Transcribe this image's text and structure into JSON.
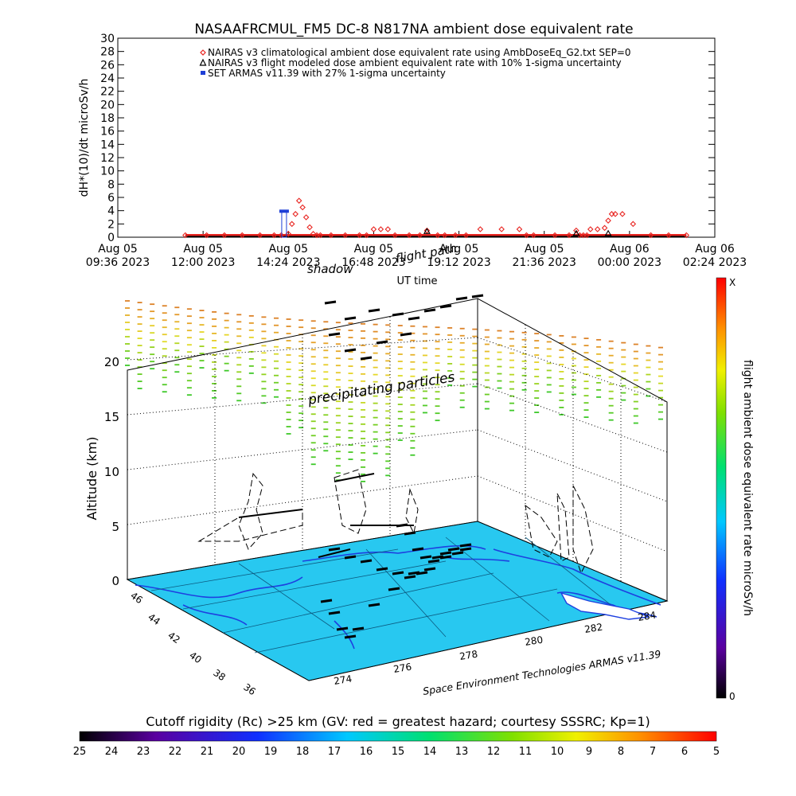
{
  "top_chart": {
    "title": "NASAAFRCMUL_FM5 DC-8   N817NA ambient dose equivalent rate",
    "ylabel": "dH*(10)/dt microSv/h",
    "xlabel": "UT time",
    "legend": [
      {
        "text": "NAIRAS v3 climatological ambient dose equivalent rate using AmbDoseEq_G2.txt SEP=0",
        "marker": "diamond",
        "color": "#e8231f"
      },
      {
        "text": "NAIRAS v3 flight modeled dose ambient equivalent rate with 10% 1-sigma uncertainty",
        "marker": "triangle",
        "color": "#000000"
      },
      {
        "text": "SET ARMAS v11.39 with 27% 1-sigma uncertainty",
        "marker": "square",
        "color": "#1f3fd6"
      }
    ],
    "x_ticks": [
      {
        "line1": "Aug 05",
        "line2": "09:36 2023"
      },
      {
        "line1": "Aug 05",
        "line2": "12:00 2023"
      },
      {
        "line1": "Aug 05",
        "line2": "14:24 2023"
      },
      {
        "line1": "Aug 05",
        "line2": "16:48 2023"
      },
      {
        "line1": "Aug 05",
        "line2": "19:12 2023"
      },
      {
        "line1": "Aug 05",
        "line2": "21:36 2023"
      },
      {
        "line1": "Aug 06",
        "line2": "00:00 2023"
      },
      {
        "line1": "Aug 06",
        "line2": "02:24 2023"
      }
    ],
    "y_ticks": [
      "0",
      "2",
      "4",
      "6",
      "8",
      "10",
      "12",
      "14",
      "16",
      "18",
      "20",
      "22",
      "24",
      "26",
      "28",
      "30"
    ]
  },
  "chart_data": [
    {
      "type": "scatter",
      "title": "NASAAFRCMUL_FM5 DC-8   N817NA ambient dose equivalent rate",
      "xlabel": "UT time",
      "ylabel": "dH*(10)/dt microSv/h",
      "ylim": [
        0,
        30
      ],
      "x_unit": "hours since Aug 05 2023 09:36 UT",
      "xlim": [
        0,
        16.8
      ],
      "grid": false,
      "legend_position": "top",
      "series": [
        {
          "name": "NAIRAS v3 climatological ambient dose equivalent rate using AmbDoseEq_G2.txt SEP=0",
          "marker": "diamond",
          "x": [
            1.9,
            2.5,
            3.0,
            3.5,
            4.0,
            4.4,
            4.6,
            4.8,
            4.9,
            5.0,
            5.1,
            5.2,
            5.3,
            5.4,
            5.5,
            5.6,
            5.7,
            6.0,
            6.4,
            6.8,
            7.0,
            7.2,
            7.4,
            7.6,
            7.8,
            8.2,
            8.5,
            8.7,
            9.0,
            9.2,
            9.5,
            9.8,
            10.2,
            10.8,
            11.3,
            11.5,
            11.7,
            12.3,
            12.7,
            12.9,
            13.0,
            13.1,
            13.2,
            13.3,
            13.5,
            13.7,
            13.8,
            13.9,
            14.0,
            14.2,
            14.5,
            15.0,
            15.5,
            16.0
          ],
          "y": [
            0.3,
            0.3,
            0.3,
            0.3,
            0.3,
            0.3,
            0.3,
            0.5,
            2.0,
            3.5,
            5.5,
            4.5,
            3.0,
            1.5,
            0.5,
            0.3,
            0.3,
            0.3,
            0.3,
            0.3,
            0.3,
            1.2,
            1.2,
            1.2,
            0.3,
            0.3,
            0.3,
            1.0,
            0.3,
            0.3,
            0.3,
            0.3,
            1.2,
            1.2,
            1.2,
            0.3,
            0.3,
            0.3,
            0.3,
            1.0,
            0.3,
            0.3,
            0.3,
            1.2,
            1.2,
            1.4,
            2.5,
            3.5,
            3.5,
            3.5,
            2.0,
            0.3,
            0.3,
            0.3
          ]
        },
        {
          "name": "NAIRAS v3 flight modeled dose ambient equivalent rate with 10% 1-sigma uncertainty",
          "marker": "triangle",
          "x": [
            8.7,
            12.9,
            13.8
          ],
          "y": [
            0.8,
            0.5,
            0.5
          ]
        },
        {
          "name": "SET ARMAS v11.39 with 27% 1-sigma uncertainty",
          "marker": "square",
          "x": [
            4.68
          ],
          "y": [
            3.8
          ]
        }
      ]
    },
    {
      "type": "scatter3d",
      "ylabel": "Altitude (km)",
      "zlim": [
        0,
        23
      ],
      "z_ticks": [
        "0",
        "5",
        "10",
        "15",
        "20"
      ],
      "longitude_ticks": [
        "274",
        "276",
        "278",
        "280",
        "282",
        "284"
      ],
      "latitude_ticks": [
        "46",
        "44",
        "42",
        "40",
        "38",
        "36"
      ],
      "annotations": [
        "precipitating particles",
        "shadow",
        "flight path"
      ]
    }
  ],
  "lower_plot": {
    "annotation_precip": "precipitating particles",
    "annotation_shadow": "shadow",
    "annotation_flight": "flight path",
    "altitude_label": "Altitude (km)",
    "credit": "Space Environment Technologies ARMAS v11.39",
    "colorbar_label": "flight ambient dose equivalent rate microSv/h",
    "colorbar_top": "X",
    "colorbar_bottom": "0"
  },
  "bottom_bar": {
    "title": "Cutoff rigidity (Rc) >25 km (GV: red = greatest hazard; courtesy SSSRC; Kp=1)",
    "ticks": [
      "25",
      "24",
      "23",
      "22",
      "21",
      "20",
      "19",
      "18",
      "17",
      "16",
      "15",
      "14",
      "13",
      "12",
      "11",
      "10",
      "9",
      "8",
      "7",
      "6",
      "5"
    ]
  },
  "colors": {
    "climatology": "#e8231f",
    "armas": "#1f3fd6",
    "ground": "#28c8f0",
    "coast": "#1e40e0"
  }
}
